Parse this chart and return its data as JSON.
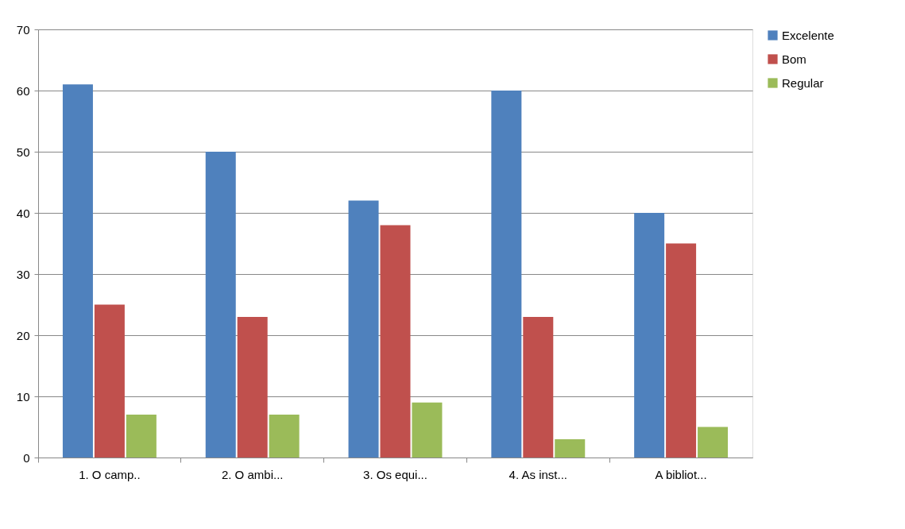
{
  "chart_data": {
    "type": "bar",
    "categories": [
      "1. O camp..",
      "2. O ambi...",
      "3. Os equi...",
      "4. As inst...",
      "A bibliot..."
    ],
    "series": [
      {
        "name": "Excelente",
        "color": "#4f81bd",
        "values": [
          61,
          50,
          42,
          60,
          40
        ]
      },
      {
        "name": "Bom",
        "color": "#c0504d",
        "values": [
          25,
          23,
          38,
          23,
          35
        ]
      },
      {
        "name": "Regular",
        "color": "#9bbb59",
        "values": [
          7,
          7,
          9,
          3,
          5
        ]
      }
    ],
    "ylim": [
      0,
      70
    ],
    "yticks": [
      0,
      10,
      20,
      30,
      40,
      50,
      60,
      70
    ],
    "grid": "y",
    "legend": "right"
  }
}
